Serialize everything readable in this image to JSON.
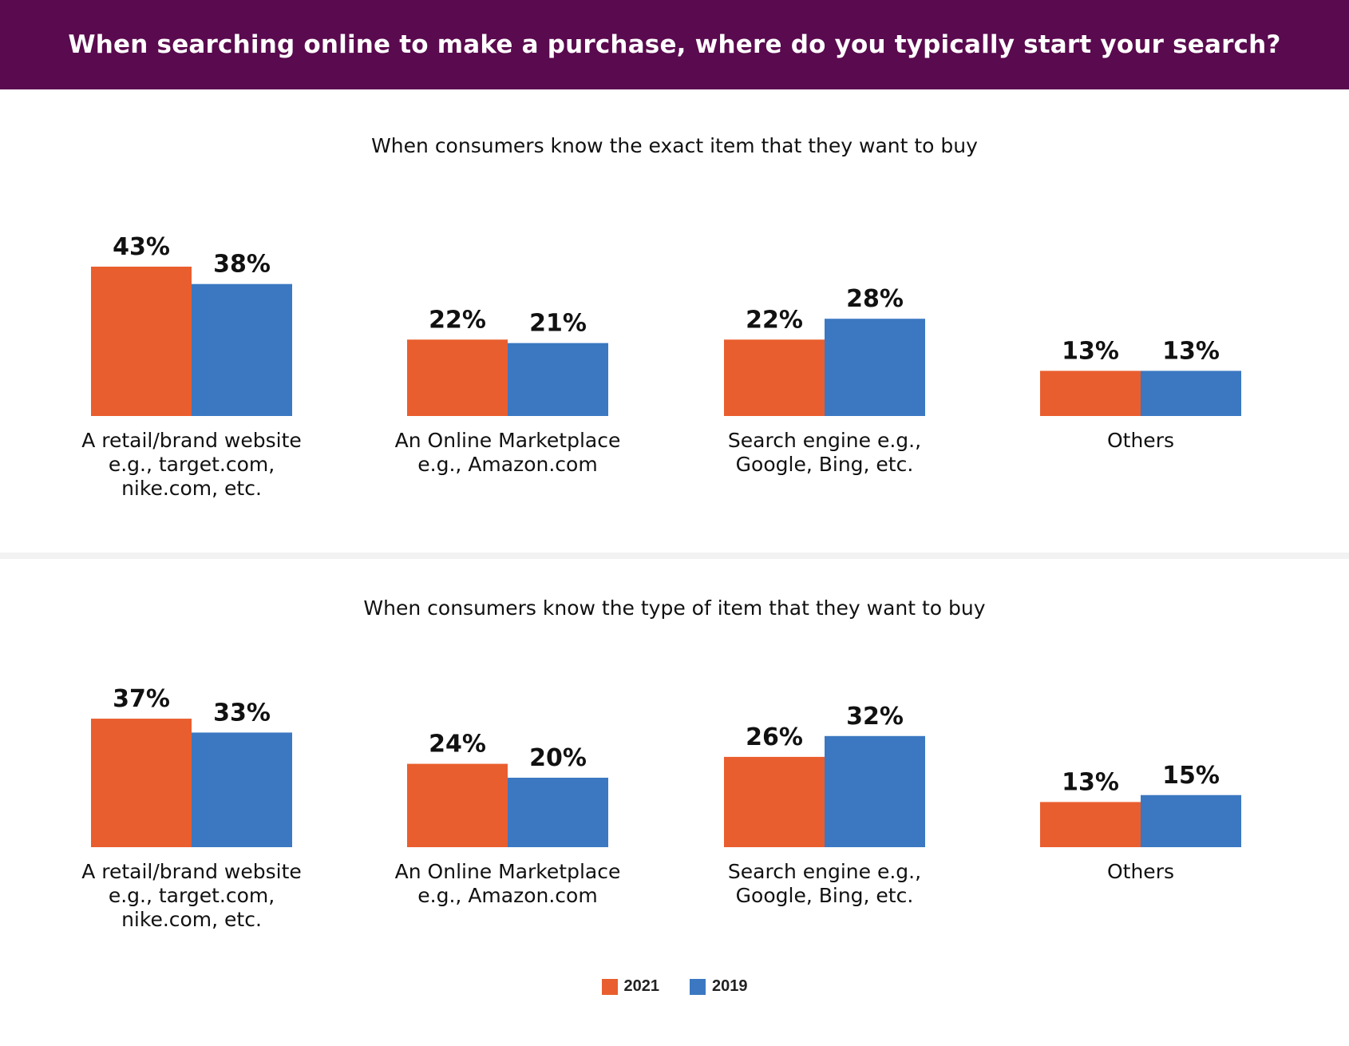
{
  "header": {
    "title": "When searching online to make a purchase, where do you typically start your search?"
  },
  "colors": {
    "banner": "#5a0a4e",
    "series_2021": "#e95e2e",
    "series_2019": "#3b78c1"
  },
  "legend": [
    {
      "label": "2021",
      "color": "#e95e2e"
    },
    {
      "label": "2019",
      "color": "#3b78c1"
    }
  ],
  "chart_data": [
    {
      "type": "bar",
      "title": "When consumers know the exact item that they want to buy",
      "categories": [
        [
          "A retail/brand website",
          "e.g., target.com,",
          "nike.com, etc."
        ],
        [
          "An Online Marketplace",
          "e.g., Amazon.com"
        ],
        [
          "Search engine e.g.,",
          "Google, Bing, etc."
        ],
        [
          "Others"
        ]
      ],
      "series": [
        {
          "name": "2021",
          "values": [
            43,
            22,
            22,
            13
          ],
          "labels": [
            "43%",
            "22%",
            "22%",
            "13%"
          ],
          "color": "#e95e2e"
        },
        {
          "name": "2019",
          "values": [
            38,
            21,
            28,
            13
          ],
          "labels": [
            "38%",
            "21%",
            "28%",
            "13%"
          ],
          "color": "#3b78c1"
        }
      ],
      "unit": "%",
      "ylim": [
        0,
        50
      ],
      "grid": false,
      "legend_position": "bottom-center"
    },
    {
      "type": "bar",
      "title": "When consumers know the type of item that they want to buy",
      "categories": [
        [
          "A retail/brand website",
          "e.g., target.com,",
          "nike.com, etc."
        ],
        [
          "An Online Marketplace",
          "e.g., Amazon.com"
        ],
        [
          "Search engine e.g.,",
          "Google, Bing, etc."
        ],
        [
          "Others"
        ]
      ],
      "series": [
        {
          "name": "2021",
          "values": [
            37,
            24,
            26,
            13
          ],
          "labels": [
            "37%",
            "24%",
            "26%",
            "13%"
          ],
          "color": "#e95e2e"
        },
        {
          "name": "2019",
          "values": [
            33,
            20,
            32,
            15
          ],
          "labels": [
            "33%",
            "20%",
            "32%",
            "15%"
          ],
          "color": "#3b78c1"
        }
      ],
      "unit": "%",
      "ylim": [
        0,
        50
      ],
      "grid": false,
      "legend_position": "bottom-center"
    }
  ]
}
